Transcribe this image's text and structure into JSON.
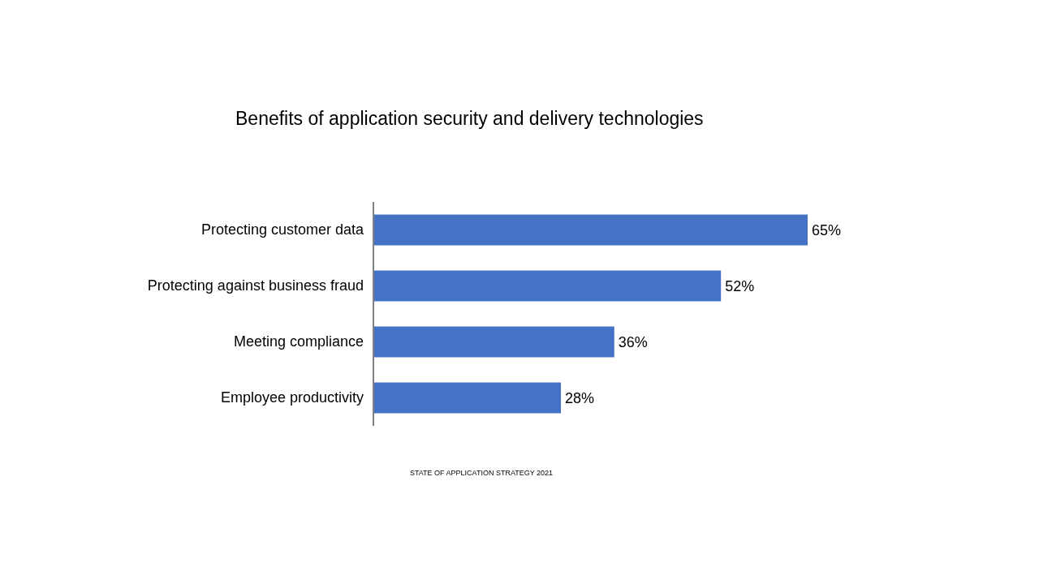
{
  "chart_data": {
    "type": "bar",
    "orientation": "horizontal",
    "title": "Benefits of application security and delivery technologies",
    "categories": [
      "Protecting customer data",
      "Protecting against business fraud",
      "Meeting compliance",
      "Employee productivity"
    ],
    "values": [
      65,
      52,
      36,
      28
    ],
    "value_labels": [
      "65%",
      "52%",
      "36%",
      "28%"
    ],
    "color": "#4472c4",
    "annotations": [
      "STATE OF APPLICATION STRATEGY 2021"
    ]
  }
}
